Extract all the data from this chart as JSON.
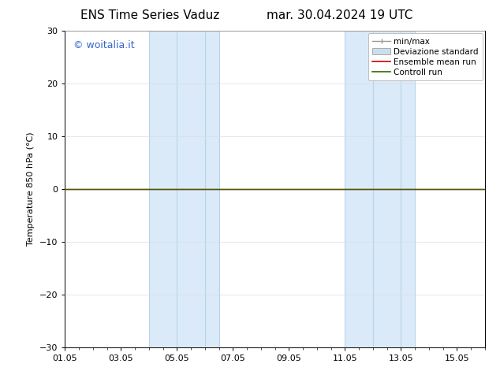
{
  "title_left": "ENS Time Series Vaduz",
  "title_right": "mar. 30.04.2024 19 UTC",
  "ylabel": "Temperature 850 hPa (°C)",
  "ylim": [
    -30,
    30
  ],
  "yticks": [
    -30,
    -20,
    -10,
    0,
    10,
    20,
    30
  ],
  "xtick_labels": [
    "01.05",
    "03.05",
    "05.05",
    "07.05",
    "09.05",
    "11.05",
    "13.05",
    "15.05"
  ],
  "xtick_positions": [
    0,
    2,
    4,
    6,
    8,
    10,
    12,
    14
  ],
  "xlim": [
    0,
    15
  ],
  "background_color": "#ffffff",
  "plot_bg_color": "#ffffff",
  "shaded_bands": [
    {
      "x_start": 3.0,
      "x_end": 5.5,
      "color": "#daeaf8"
    },
    {
      "x_start": 10.0,
      "x_end": 12.5,
      "color": "#daeaf8"
    }
  ],
  "band_vlines": [
    {
      "x": 3.0,
      "color": "#b8d4ec",
      "lw": 0.8
    },
    {
      "x": 4.0,
      "color": "#b8d4ec",
      "lw": 0.8
    },
    {
      "x": 5.0,
      "color": "#b8d4ec",
      "lw": 0.8
    },
    {
      "x": 5.5,
      "color": "#b8d4ec",
      "lw": 0.8
    },
    {
      "x": 10.0,
      "color": "#b8d4ec",
      "lw": 0.8
    },
    {
      "x": 11.0,
      "color": "#b8d4ec",
      "lw": 0.8
    },
    {
      "x": 12.0,
      "color": "#b8d4ec",
      "lw": 0.8
    },
    {
      "x": 12.5,
      "color": "#b8d4ec",
      "lw": 0.8
    }
  ],
  "ensemble_mean_color": "#cc0000",
  "control_run_color": "#336600",
  "watermark_text": "© woitalia.it",
  "watermark_color": "#3366cc",
  "title_fontsize": 11,
  "axis_fontsize": 8,
  "tick_fontsize": 8,
  "watermark_fontsize": 9,
  "legend_fontsize": 7.5
}
